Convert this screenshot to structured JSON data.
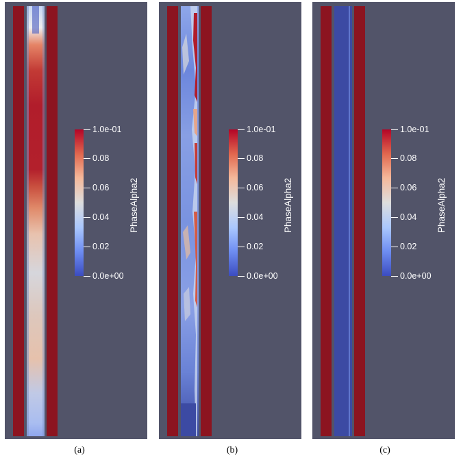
{
  "colors": {
    "background": "#525469",
    "wall": "#8c1420",
    "colormap": [
      "#3b4cc0",
      "#7b9ff9",
      "#c0d4f5",
      "#dddddd",
      "#f2cbb7",
      "#ee8468",
      "#b40426"
    ],
    "solid_phase_channel": "#3c4aa3"
  },
  "legend": {
    "title": "PhaseAlpha2",
    "ticks": [
      "1.0e-01",
      "0.08",
      "0.06",
      "0.04",
      "0.02",
      "0.0e+00"
    ]
  },
  "panels": [
    {
      "caption": "(a)"
    },
    {
      "caption": "(b)"
    },
    {
      "caption": "(c)"
    }
  ]
}
